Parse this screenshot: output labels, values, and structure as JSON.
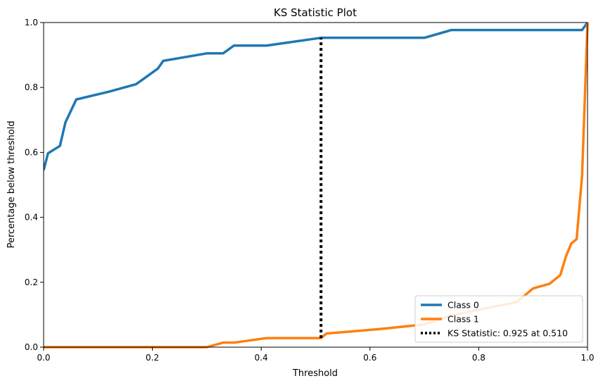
{
  "chart_data": {
    "type": "line",
    "title": "KS Statistic Plot",
    "xlabel": "Threshold",
    "ylabel": "Percentage below threshold",
    "xlim": [
      0.0,
      1.0
    ],
    "ylim": [
      0.0,
      1.0
    ],
    "xticks": [
      "0.0",
      "0.2",
      "0.4",
      "0.6",
      "0.8",
      "1.0"
    ],
    "yticks": [
      "0.0",
      "0.2",
      "0.4",
      "0.6",
      "0.8",
      "1.0"
    ],
    "grid": false,
    "legend_position": "bottom-right",
    "series": [
      {
        "name": "Class 0",
        "color": "#1f77b4",
        "x": [
          0.0,
          0.008,
          0.03,
          0.04,
          0.06,
          0.12,
          0.17,
          0.21,
          0.22,
          0.3,
          0.33,
          0.35,
          0.41,
          0.51,
          0.7,
          0.75,
          0.99,
          1.0
        ],
        "y": [
          0.545,
          0.597,
          0.62,
          0.692,
          0.763,
          0.787,
          0.81,
          0.858,
          0.882,
          0.905,
          0.905,
          0.929,
          0.929,
          0.953,
          0.953,
          0.977,
          0.977,
          1.0
        ]
      },
      {
        "name": "Class 1",
        "color": "#ff7f0e",
        "x": [
          0.0,
          0.3,
          0.33,
          0.35,
          0.41,
          0.51,
          0.52,
          0.62,
          0.7,
          0.75,
          0.87,
          0.9,
          0.93,
          0.95,
          0.96,
          0.97,
          0.98,
          0.99,
          1.0
        ],
        "y": [
          0.0,
          0.0,
          0.014,
          0.014,
          0.028,
          0.028,
          0.042,
          0.056,
          0.07,
          0.098,
          0.139,
          0.181,
          0.195,
          0.222,
          0.278,
          0.319,
          0.333,
          0.528,
          1.0
        ]
      }
    ],
    "ks_statistic": {
      "label": "KS Statistic: 0.925 at 0.510",
      "x": 0.51,
      "y_low": 0.028,
      "y_high": 0.953,
      "color": "#000000"
    }
  }
}
